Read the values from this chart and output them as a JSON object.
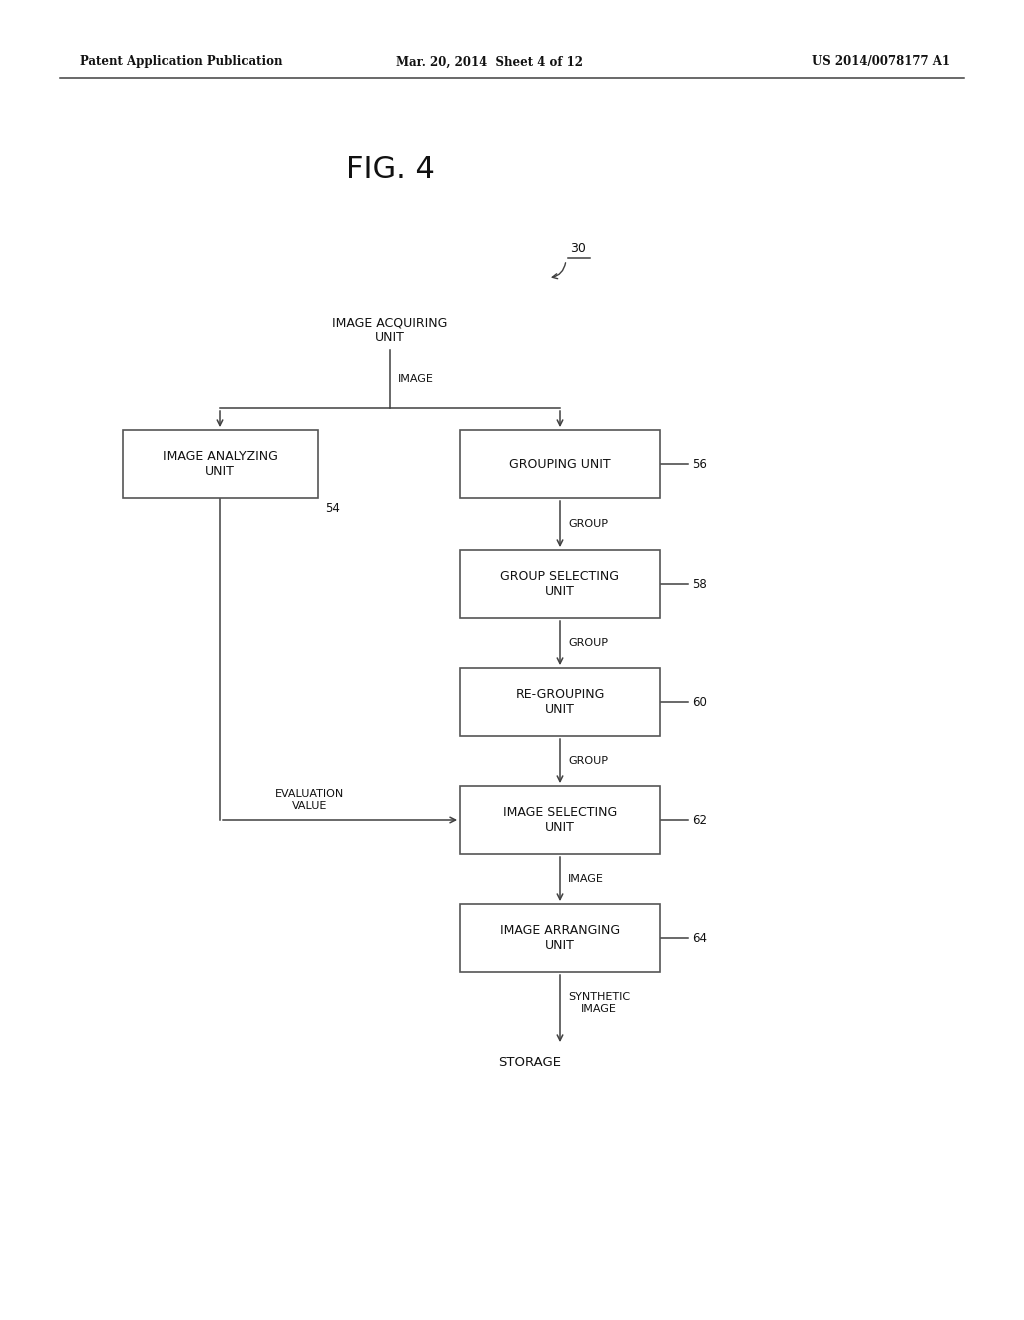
{
  "background_color": "#ffffff",
  "header_left": "Patent Application Publication",
  "header_center": "Mar. 20, 2014  Sheet 4 of 12",
  "header_right": "US 2014/0078177 A1",
  "fig_label": "FIG. 4",
  "label_30": "30",
  "arrow_color": "#404040",
  "text_color": "#111111",
  "box_edge_color": "#555555",
  "font_size_box": 9.0,
  "font_size_label": 8.0,
  "font_size_header": 8.5,
  "font_size_fig": 22,
  "font_size_ref": 8.5
}
